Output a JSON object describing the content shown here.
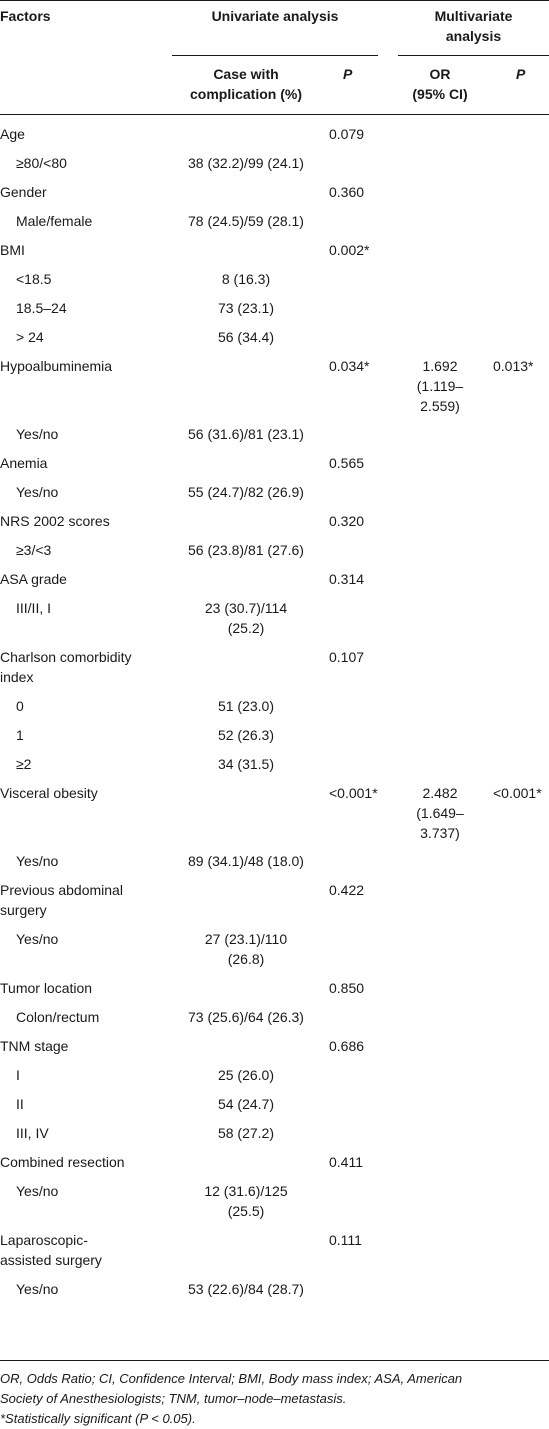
{
  "header": {
    "factors": "Factors",
    "univariate": "Univariate analysis",
    "multivariate_l1": "Multivariate",
    "multivariate_l2": "analysis",
    "case_l1": "Case with",
    "case_l2": "complication (%)",
    "p1": "P",
    "or_l1": "OR",
    "or_l2": "(95% CI)",
    "p2": "P"
  },
  "rows": [
    {
      "factor": "Age",
      "case": "",
      "p": "0.079",
      "or": [],
      "p2": ""
    },
    {
      "factor": "≥80/<80",
      "case": "38 (32.2)/99 (24.1)",
      "p": "",
      "or": [],
      "p2": ""
    },
    {
      "factor": "Gender",
      "case": "",
      "p": "0.360",
      "or": [],
      "p2": ""
    },
    {
      "factor": "Male/female",
      "case": "78 (24.5)/59 (28.1)",
      "p": "",
      "or": [],
      "p2": ""
    },
    {
      "factor": "BMI",
      "case": "",
      "p": "0.002*",
      "or": [],
      "p2": ""
    },
    {
      "factor": "<18.5",
      "case": "8 (16.3)",
      "p": "",
      "or": [],
      "p2": ""
    },
    {
      "factor": "18.5–24",
      "case": "73 (23.1)",
      "p": "",
      "or": [],
      "p2": ""
    },
    {
      "factor": "> 24",
      "case": "56 (34.4)",
      "p": "",
      "or": [],
      "p2": ""
    },
    {
      "factor": "Hypoalbuminemia",
      "case": "",
      "p": "0.034*",
      "or": [
        "1.692",
        "(1.119–",
        "2.559)"
      ],
      "p2": "0.013*"
    },
    {
      "factor": "Yes/no",
      "case": "56 (31.6)/81 (23.1)",
      "p": "",
      "or": [],
      "p2": ""
    },
    {
      "factor": "Anemia",
      "case": "",
      "p": "0.565",
      "or": [],
      "p2": ""
    },
    {
      "factor": "Yes/no",
      "case": "55 (24.7)/82 (26.9)",
      "p": "",
      "or": [],
      "p2": ""
    },
    {
      "factor": "NRS 2002 scores",
      "case": "",
      "p": "0.320",
      "or": [],
      "p2": ""
    },
    {
      "factor": "≥3/<3",
      "case": "56 (23.8)/81 (27.6)",
      "p": "",
      "or": [],
      "p2": ""
    },
    {
      "factor": "ASA grade",
      "case": "",
      "p": "0.314",
      "or": [],
      "p2": ""
    },
    {
      "factor": "III/II, I",
      "case": [
        "23 (30.7)/114",
        "(25.2)"
      ],
      "p": "",
      "or": [],
      "p2": ""
    },
    {
      "factor": [
        "Charlson comorbidity",
        "index"
      ],
      "case": "",
      "p": "0.107",
      "or": [],
      "p2": ""
    },
    {
      "factor": "0",
      "case": "51 (23.0)",
      "p": "",
      "or": [],
      "p2": ""
    },
    {
      "factor": "1",
      "case": "52 (26.3)",
      "p": "",
      "or": [],
      "p2": ""
    },
    {
      "factor": "≥2",
      "case": "34 (31.5)",
      "p": "",
      "or": [],
      "p2": ""
    },
    {
      "factor": "Visceral obesity",
      "case": "",
      "p": "<0.001*",
      "or": [
        "2.482",
        "(1.649–",
        "3.737)"
      ],
      "p2": "<0.001*"
    },
    {
      "factor": "Yes/no",
      "case": "89 (34.1)/48 (18.0)",
      "p": "",
      "or": [],
      "p2": ""
    },
    {
      "factor": [
        "Previous abdominal",
        "surgery"
      ],
      "case": "",
      "p": "0.422",
      "or": [],
      "p2": ""
    },
    {
      "factor": "Yes/no",
      "case": [
        "27 (23.1)/110",
        "(26.8)"
      ],
      "p": "",
      "or": [],
      "p2": ""
    },
    {
      "factor": "Tumor location",
      "case": "",
      "p": "0.850",
      "or": [],
      "p2": ""
    },
    {
      "factor": "Colon/rectum",
      "case": "73 (25.6)/64 (26.3)",
      "p": "",
      "or": [],
      "p2": ""
    },
    {
      "factor": "TNM stage",
      "case": "",
      "p": "0.686",
      "or": [],
      "p2": ""
    },
    {
      "factor": "I",
      "case": "25 (26.0)",
      "p": "",
      "or": [],
      "p2": ""
    },
    {
      "factor": "II",
      "case": "54 (24.7)",
      "p": "",
      "or": [],
      "p2": ""
    },
    {
      "factor": "III, IV",
      "case": "58 (27.2)",
      "p": "",
      "or": [],
      "p2": ""
    },
    {
      "factor": "Combined resection",
      "case": "",
      "p": "0.411",
      "or": [],
      "p2": ""
    },
    {
      "factor": "Yes/no",
      "case": [
        "12 (31.6)/125",
        "(25.5)"
      ],
      "p": "",
      "or": [],
      "p2": ""
    },
    {
      "factor": [
        "Laparoscopic-",
        "assisted surgery"
      ],
      "case": "",
      "p": "0.111",
      "or": [],
      "p2": ""
    },
    {
      "factor": "Yes/no",
      "case": "53 (22.6)/84 (28.7)",
      "p": "",
      "or": [],
      "p2": ""
    }
  ],
  "footnotes": [
    "OR, Odds Ratio; CI, Confidence Interval; BMI, Body mass index; ASA, American",
    "Society of Anesthesiologists; TNM, tumor–node–metastasis.",
    "*Statistically significant (P < 0.05)."
  ]
}
